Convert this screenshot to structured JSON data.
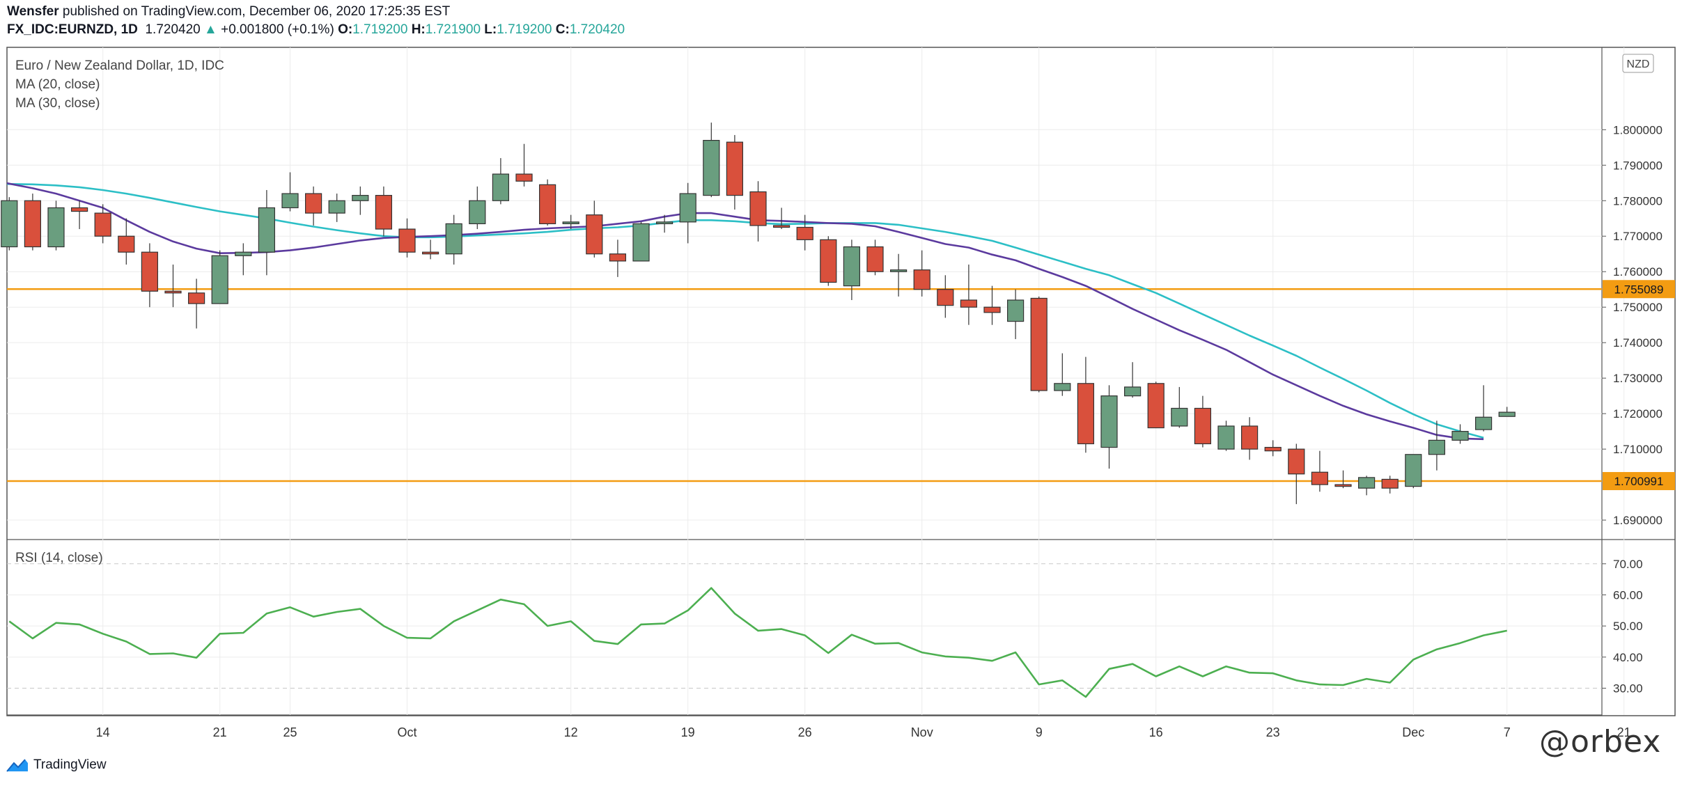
{
  "header": {
    "author": "Wensfer",
    "published_text": "published on TradingView.com, December 06, 2020 17:25:35 EST",
    "symbol": "FX_IDC:EURNZD, 1D",
    "last_price": "1.720420",
    "change_arrow": "▲",
    "change": "+0.001800 (+0.1%)",
    "o_label": "O:",
    "o_value": "1.719200",
    "h_label": "H:",
    "h_value": "1.721900",
    "l_label": "L:",
    "l_value": "1.719200",
    "c_label": "C:",
    "c_value": "1.720420"
  },
  "legend": {
    "instrument": "Euro / New Zealand Dollar, 1D, IDC",
    "ma20": "MA (20, close)",
    "ma30": "MA (30, close)",
    "rsi": "RSI (14, close)"
  },
  "currency_badge": "NZD",
  "footer": {
    "brand": "TradingView",
    "watermark": "@orbex"
  },
  "colors": {
    "up": "#6a9e7f",
    "down": "#d9503c",
    "ma20": "#5b3a9e",
    "ma30": "#2cbfc6",
    "rsi": "#4caf50",
    "hline": "#f39c12"
  },
  "chart_data": [
    {
      "type": "candlestick",
      "title": "Euro / New Zealand Dollar, 1D, IDC",
      "y_axis_ticks": [
        "1.800000",
        "1.790000",
        "1.780000",
        "1.770000",
        "1.760000",
        "1.750000",
        "1.740000",
        "1.730000",
        "1.720000",
        "1.710000",
        "1.690000"
      ],
      "ylim": [
        1.6855,
        1.8185
      ],
      "x_ticks": [
        {
          "label": "14",
          "i": 4
        },
        {
          "label": "21",
          "i": 9
        },
        {
          "label": "25",
          "i": 12
        },
        {
          "label": "Oct",
          "i": 17
        },
        {
          "label": "12",
          "i": 24
        },
        {
          "label": "19",
          "i": 29
        },
        {
          "label": "26",
          "i": 34
        },
        {
          "label": "Nov",
          "i": 39
        },
        {
          "label": "9",
          "i": 44
        },
        {
          "label": "16",
          "i": 49
        },
        {
          "label": "23",
          "i": 54
        },
        {
          "label": "Dec",
          "i": 60
        },
        {
          "label": "7",
          "i": 64
        },
        {
          "label": "21",
          "i": 69
        }
      ],
      "horizontal_levels": [
        {
          "value": 1.755089,
          "label": "1.755089"
        },
        {
          "value": 1.700991,
          "label": "1.700991"
        }
      ],
      "candles": [
        [
          1.767,
          1.781,
          1.766,
          1.78
        ],
        [
          1.78,
          1.782,
          1.766,
          1.767
        ],
        [
          1.767,
          1.78,
          1.766,
          1.778
        ],
        [
          1.778,
          1.78,
          1.772,
          1.777
        ],
        [
          1.7765,
          1.779,
          1.768,
          1.77
        ],
        [
          1.77,
          1.775,
          1.762,
          1.7655
        ],
        [
          1.7655,
          1.768,
          1.75,
          1.7545
        ],
        [
          1.7545,
          1.762,
          1.75,
          1.754
        ],
        [
          1.754,
          1.758,
          1.744,
          1.751
        ],
        [
          1.751,
          1.766,
          1.751,
          1.7645
        ],
        [
          1.7645,
          1.768,
          1.759,
          1.7655
        ],
        [
          1.7655,
          1.783,
          1.759,
          1.778
        ],
        [
          1.778,
          1.788,
          1.777,
          1.782
        ],
        [
          1.782,
          1.784,
          1.773,
          1.7765
        ],
        [
          1.7765,
          1.782,
          1.774,
          1.78
        ],
        [
          1.78,
          1.784,
          1.776,
          1.7815
        ],
        [
          1.7815,
          1.784,
          1.77,
          1.772
        ],
        [
          1.772,
          1.775,
          1.764,
          1.7655
        ],
        [
          1.7655,
          1.769,
          1.7635,
          1.765
        ],
        [
          1.765,
          1.776,
          1.762,
          1.7735
        ],
        [
          1.7735,
          1.784,
          1.772,
          1.78
        ],
        [
          1.78,
          1.792,
          1.779,
          1.7875
        ],
        [
          1.7875,
          1.796,
          1.784,
          1.7855
        ],
        [
          1.7845,
          1.786,
          1.773,
          1.7735
        ],
        [
          1.7735,
          1.776,
          1.772,
          1.774
        ],
        [
          1.776,
          1.78,
          1.764,
          1.765
        ],
        [
          1.765,
          1.769,
          1.7585,
          1.763
        ],
        [
          1.763,
          1.774,
          1.763,
          1.7735
        ],
        [
          1.7735,
          1.776,
          1.771,
          1.774
        ],
        [
          1.774,
          1.785,
          1.768,
          1.782
        ],
        [
          1.7815,
          1.802,
          1.781,
          1.797
        ],
        [
          1.7965,
          1.7985,
          1.7775,
          1.7815
        ],
        [
          1.7825,
          1.7855,
          1.7685,
          1.773
        ],
        [
          1.773,
          1.778,
          1.772,
          1.7725
        ],
        [
          1.7725,
          1.776,
          1.766,
          1.769
        ],
        [
          1.769,
          1.77,
          1.756,
          1.757
        ],
        [
          1.756,
          1.769,
          1.752,
          1.767
        ],
        [
          1.767,
          1.769,
          1.759,
          1.76
        ],
        [
          1.76,
          1.765,
          1.753,
          1.7605
        ],
        [
          1.7605,
          1.766,
          1.753,
          1.755
        ],
        [
          1.755,
          1.759,
          1.747,
          1.7505
        ],
        [
          1.752,
          1.762,
          1.745,
          1.75
        ],
        [
          1.75,
          1.756,
          1.745,
          1.7485
        ],
        [
          1.746,
          1.755,
          1.741,
          1.752
        ],
        [
          1.7525,
          1.753,
          1.726,
          1.7265
        ],
        [
          1.7265,
          1.737,
          1.725,
          1.7285
        ],
        [
          1.7285,
          1.736,
          1.709,
          1.7115
        ],
        [
          1.7105,
          1.728,
          1.7045,
          1.725
        ],
        [
          1.725,
          1.7345,
          1.7245,
          1.7275
        ],
        [
          1.7285,
          1.729,
          1.716,
          1.716
        ],
        [
          1.7165,
          1.7275,
          1.716,
          1.7215
        ],
        [
          1.7215,
          1.725,
          1.7105,
          1.7115
        ],
        [
          1.71,
          1.718,
          1.7095,
          1.7165
        ],
        [
          1.7165,
          1.719,
          1.707,
          1.71
        ],
        [
          1.7105,
          1.7125,
          1.708,
          1.7095
        ],
        [
          1.71,
          1.7115,
          1.6945,
          1.703
        ],
        [
          1.7035,
          1.7095,
          1.698,
          1.7
        ],
        [
          1.7,
          1.704,
          1.699,
          1.6995
        ],
        [
          1.699,
          1.7025,
          1.697,
          1.702
        ],
        [
          1.7015,
          1.7025,
          1.6975,
          1.699
        ],
        [
          1.6995,
          1.7085,
          1.699,
          1.7085
        ],
        [
          1.7085,
          1.718,
          1.704,
          1.7125
        ],
        [
          1.7125,
          1.717,
          1.7115,
          1.715
        ],
        [
          1.7155,
          1.728,
          1.715,
          1.719
        ],
        [
          1.7192,
          1.7219,
          1.7192,
          1.7204
        ]
      ],
      "series": [
        {
          "name": "MA (20, close)",
          "x_start": -2,
          "values": [
            1.7875,
            1.7862,
            1.7848,
            1.7835,
            1.782,
            1.78,
            1.778,
            1.7745,
            1.7712,
            1.7685,
            1.7665,
            1.7652,
            1.7653,
            1.7655,
            1.766,
            1.7668,
            1.7678,
            1.7688,
            1.7695,
            1.7698,
            1.77,
            1.7703,
            1.7707,
            1.7712,
            1.7718,
            1.7722,
            1.7725,
            1.7728,
            1.7735,
            1.7742,
            1.7755,
            1.7765,
            1.7765,
            1.7755,
            1.7745,
            1.7743,
            1.774,
            1.7737,
            1.7735,
            1.7728,
            1.7712,
            1.7695,
            1.7678,
            1.7668,
            1.7648,
            1.7632,
            1.7608,
            1.7585,
            1.756,
            1.7528,
            1.7495,
            1.7465,
            1.7435,
            1.7408,
            1.738,
            1.7345,
            1.731,
            1.728,
            1.725,
            1.7222,
            1.7198,
            1.7178,
            1.716,
            1.714,
            1.713,
            1.7128
          ]
        },
        {
          "name": "MA (30, close)",
          "x_start": -2,
          "values": [
            1.7845,
            1.7847,
            1.7847,
            1.7846,
            1.7843,
            1.7838,
            1.783,
            1.782,
            1.7808,
            1.7795,
            1.7782,
            1.777,
            1.776,
            1.775,
            1.7738,
            1.7727,
            1.7717,
            1.7708,
            1.77,
            1.7697,
            1.7697,
            1.7699,
            1.7702,
            1.7705,
            1.7708,
            1.7712,
            1.7718,
            1.7722,
            1.7725,
            1.773,
            1.7738,
            1.7745,
            1.7745,
            1.7742,
            1.7737,
            1.7734,
            1.7735,
            1.7737,
            1.7737,
            1.7737,
            1.7732,
            1.7722,
            1.7712,
            1.77,
            1.7687,
            1.7668,
            1.7648,
            1.7628,
            1.7608,
            1.759,
            1.7565,
            1.754,
            1.751,
            1.748,
            1.745,
            1.742,
            1.7392,
            1.7363,
            1.733,
            1.7298,
            1.7265,
            1.723,
            1.7198,
            1.717,
            1.715,
            1.7132
          ]
        }
      ]
    },
    {
      "type": "line",
      "title": "RSI (14, close)",
      "y_axis_ticks": [
        "70.00",
        "60.00",
        "50.00",
        "40.00",
        "30.00"
      ],
      "ylim": [
        22.5,
        76
      ],
      "dashed_levels": [
        70,
        30
      ],
      "series": [
        {
          "name": "RSI (14, close)",
          "x_start": 0,
          "values": [
            51.5,
            46,
            51,
            50.5,
            47.5,
            45,
            41,
            41.2,
            39.8,
            47.5,
            47.8,
            54,
            56,
            53,
            54.5,
            55.5,
            50,
            46.2,
            46,
            51.5,
            55,
            58.5,
            57,
            50,
            51.5,
            45.2,
            44.2,
            50.5,
            50.8,
            55,
            62.2,
            54,
            48.5,
            49,
            47,
            41.3,
            47.2,
            44.3,
            44.5,
            41.5,
            40.2,
            39.8,
            38.8,
            41.5,
            31.2,
            32.5,
            27.2,
            36.2,
            37.8,
            33.8,
            37,
            33.8,
            37,
            35,
            34.8,
            32.5,
            31.2,
            31,
            33,
            31.8,
            39.2,
            42.5,
            44.5,
            47,
            48.5
          ]
        }
      ]
    }
  ]
}
